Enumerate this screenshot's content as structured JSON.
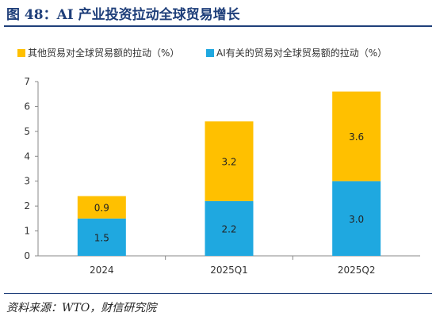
{
  "figure": {
    "title": "图 48：AI 产业投资拉动全球贸易增长",
    "source": "资料来源：WTO，财信研究院"
  },
  "colors": {
    "other": "#FFC000",
    "ai": "#1FA8E0",
    "heading": "#1f3f7a",
    "axis": "#888888"
  },
  "chart_data": {
    "type": "bar",
    "stacked": true,
    "categories": [
      "2024",
      "2025Q1",
      "2025Q2"
    ],
    "series": [
      {
        "name": "AI有关的贸易对全球贸易额的拉动（%）",
        "values": [
          1.5,
          2.2,
          3.0
        ],
        "labels": [
          "1.5",
          "2.2",
          "3.0"
        ],
        "color_key": "ai"
      },
      {
        "name": "其他贸易对全球贸易额的拉动（%）",
        "values": [
          0.9,
          3.2,
          3.6
        ],
        "labels": [
          "0.9",
          "3.2",
          "3.6"
        ],
        "color_key": "other"
      }
    ],
    "legend_order": [
      1,
      0
    ],
    "legend_position": "top",
    "ylim": [
      0,
      7
    ],
    "yticks": [
      "0",
      "1",
      "2",
      "3",
      "4",
      "5",
      "6",
      "7"
    ],
    "grid": false,
    "xlabel": "",
    "ylabel": ""
  }
}
